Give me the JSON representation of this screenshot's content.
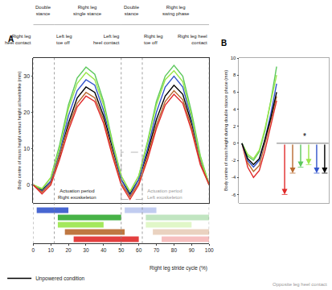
{
  "chart_data": [
    {
      "type": "line",
      "title": "A",
      "y_label": "Body centre of mass height versus height at heelstrike (mm)",
      "x_label": "Right leg stride cycle (%)",
      "x": [
        0,
        5,
        10,
        15,
        20,
        25,
        30,
        35,
        40,
        45,
        50,
        55,
        60,
        65,
        70,
        75,
        80,
        85,
        90,
        95,
        100
      ],
      "series": [
        {
          "name": "Unpowered condition",
          "color": "#000000",
          "values": [
            0,
            -1.5,
            1,
            8,
            17,
            24,
            27,
            25.5,
            19,
            10,
            1.5,
            -2.5,
            1.5,
            9,
            18,
            24.5,
            27.5,
            25,
            17,
            7,
            0
          ]
        },
        {
          "color": "#3355cc",
          "values": [
            0,
            -1.8,
            1,
            9,
            19,
            26,
            29,
            27.5,
            20.5,
            11,
            1.5,
            -3,
            1.5,
            10,
            20,
            27,
            30,
            27,
            18,
            7,
            0
          ]
        },
        {
          "color": "#5cc85c",
          "values": [
            0,
            -1.2,
            2,
            11,
            22,
            29.5,
            32.5,
            30.5,
            23,
            12,
            2.5,
            -2,
            2.5,
            12,
            23,
            30,
            33,
            30,
            20,
            8,
            0
          ]
        },
        {
          "color": "#9ae64a",
          "values": [
            0,
            -1,
            2,
            10,
            21,
            28,
            31,
            29,
            22,
            11.5,
            2.5,
            -1.8,
            2.5,
            11.5,
            22,
            29,
            31.5,
            28.5,
            19,
            7.5,
            0
          ]
        },
        {
          "color": "#b8692e",
          "values": [
            0,
            -2,
            0.5,
            8,
            16,
            22.5,
            25.5,
            24,
            18,
            9,
            0.5,
            -3.3,
            0.5,
            8,
            16.5,
            23,
            26,
            23.5,
            16,
            6,
            0
          ]
        },
        {
          "color": "#e02a2a",
          "values": [
            0,
            -2.5,
            0,
            7,
            15,
            21.5,
            24.5,
            23,
            17,
            8,
            0,
            -4,
            0,
            7,
            15.5,
            22,
            25,
            22.5,
            15,
            5.5,
            0
          ]
        }
      ],
      "xlim": [
        0,
        100
      ],
      "xticks": [
        0,
        10,
        20,
        30,
        40,
        50,
        60,
        70,
        80,
        90,
        100
      ],
      "ylim": [
        -5,
        35
      ],
      "yticks": [
        0,
        10,
        20,
        30
      ],
      "legend": "bottom left",
      "phases": [
        {
          "label": "Double\nstance",
          "start": 0,
          "end": 12
        },
        {
          "label": "Right leg\nsingle stance",
          "start": 12,
          "end": 50
        },
        {
          "label": "Double\nstance",
          "start": 50,
          "end": 62
        },
        {
          "label": "Right leg\nswing phase",
          "start": 62,
          "end": 100
        }
      ],
      "events": [
        {
          "x": 0,
          "label": "Right leg\nheel contact"
        },
        {
          "x": 12,
          "label": "Left leg\ntoe off"
        },
        {
          "x": 50,
          "label": "Left leg\nheel contact"
        },
        {
          "x": 62,
          "label": "Right leg\ntoe off"
        },
        {
          "x": 100,
          "label": "Right leg heel\ncontact"
        }
      ],
      "actuation": {
        "right_label": "Actuation period\nRight exoskeleton",
        "left_label": "Actuation period\nLeft exoskeleton",
        "rows": [
          {
            "color": "#3355cc",
            "right": [
              2,
              20
            ],
            "left": [
              52,
              70
            ]
          },
          {
            "color": "#33aa33",
            "right": [
              14,
              50
            ],
            "left": [
              64,
              100
            ]
          },
          {
            "color": "#9ae64a",
            "right": [
              14,
              40
            ],
            "left": [
              64,
              90
            ]
          },
          {
            "color": "#b8692e",
            "right": [
              18,
              52
            ],
            "left": [
              68,
              100
            ]
          },
          {
            "color": "#e02a2a",
            "right": [
              23,
              60
            ],
            "left": [
              73,
              100
            ]
          }
        ]
      },
      "annotations": [
        {
          "text": "Opposite leg heel contact"
        }
      ]
    },
    {
      "type": "line",
      "title": "B",
      "y_label": "Body centre of mass height during double stance phase (mm)",
      "x": [
        50,
        52,
        54,
        56,
        58,
        60,
        62
      ],
      "series": [
        {
          "color": "#e02a2a",
          "values": [
            0,
            -2.8,
            -4,
            -3.2,
            -0.8,
            2,
            5
          ],
          "min": -6
        },
        {
          "color": "#b8692e",
          "values": [
            0,
            -2.3,
            -3.3,
            -2.6,
            0,
            2.7,
            5.5
          ],
          "min": -3.5
        },
        {
          "color": "#5cc85c",
          "values": [
            0,
            -1.5,
            -2,
            -1,
            1.5,
            5,
            9
          ],
          "min": -2.8
        },
        {
          "color": "#9ae64a",
          "values": [
            0,
            -1.3,
            -1.8,
            -0.8,
            1.8,
            5,
            8
          ],
          "min": -2.5
        },
        {
          "color": "#3355cc",
          "values": [
            0,
            -2,
            -2.8,
            -2,
            0.5,
            3.5,
            7
          ],
          "min": -3.5
        },
        {
          "color": "#000000",
          "values": [
            0,
            -1.8,
            -2.5,
            -1.8,
            0.5,
            3,
            6
          ],
          "min": -3.5
        }
      ],
      "xlim": [
        49,
        80
      ],
      "ylim": [
        -7,
        10
      ],
      "yticks": [
        -6,
        -4,
        -2,
        0,
        2,
        4,
        6,
        8,
        10
      ],
      "tick_labels": "y",
      "annotations": [
        {
          "text": "*"
        }
      ]
    }
  ]
}
